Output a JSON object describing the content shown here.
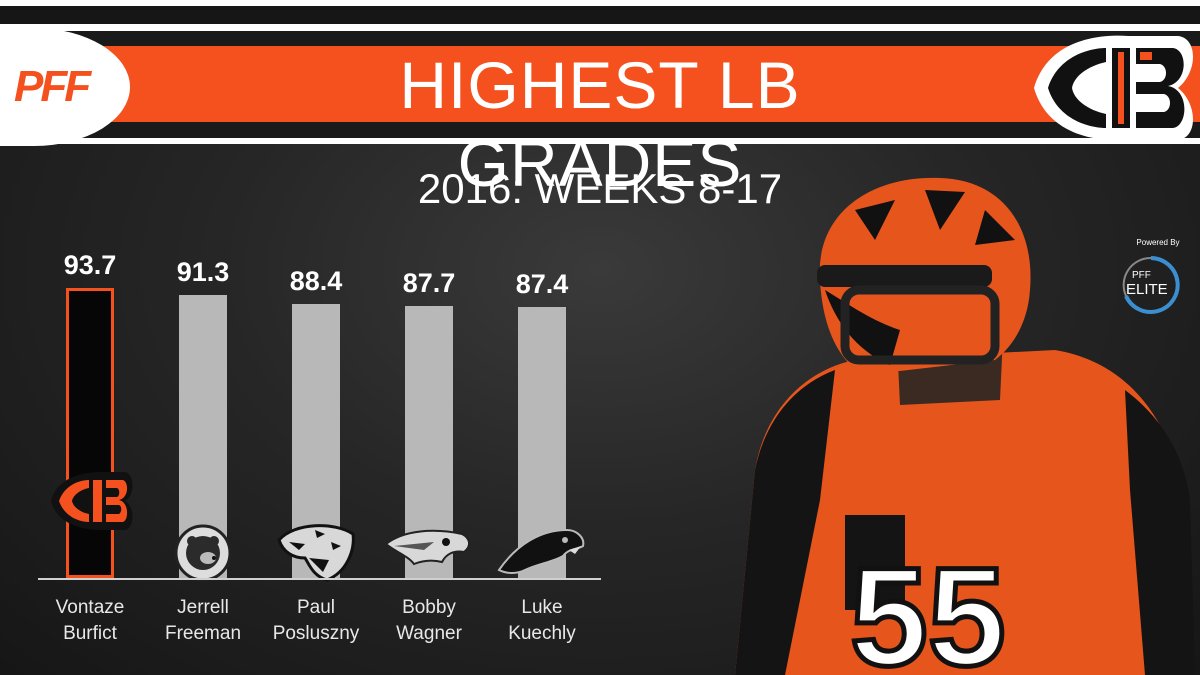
{
  "header": {
    "brand": "PFF",
    "title": "HIGHEST LB GRADES",
    "subtitle": "2016: WEEKS 8-17",
    "powered_by": "Powered By",
    "powered_brand": "PFF",
    "powered_product": "ELITE",
    "player_jersey_number": "55"
  },
  "colors": {
    "accent": "#f4511e",
    "bar": "#b8b8b8",
    "highlight_bar": "#060606",
    "text": "#ffffff"
  },
  "chart_data": {
    "type": "bar",
    "title": "HIGHEST LB GRADES",
    "subtitle": "2016: WEEKS 8-17",
    "categories": [
      "Vontaze\nBurfict",
      "Jerrell\nFreeman",
      "Paul\nPosluszny",
      "Bobby\nWagner",
      "Luke\nKuechly"
    ],
    "values": [
      93.7,
      91.3,
      88.4,
      87.7,
      87.4
    ],
    "value_labels": [
      "93.7",
      "91.3",
      "88.4",
      "87.7",
      "87.4"
    ],
    "highlight_index": 0,
    "team_icons": [
      "bengals-icon",
      "bears-icon",
      "jaguars-icon",
      "seahawks-icon",
      "panthers-icon"
    ],
    "xlabel": "",
    "ylabel": "",
    "grid": false,
    "legend": "none"
  }
}
